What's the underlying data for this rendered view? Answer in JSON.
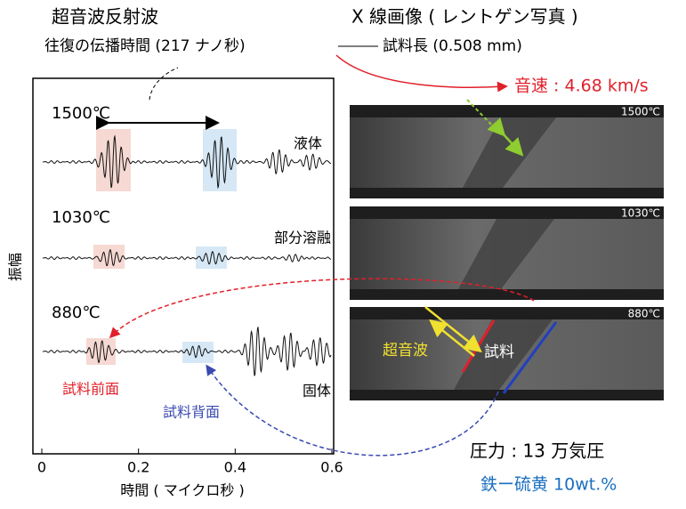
{
  "header": {
    "left_title": "超音波反射波",
    "left_subtitle": "往復の伝播時間 (217 ナノ秒)",
    "right_title": "X 線画像 ( レントゲン写真 )",
    "right_subtitle": "試料長 (0.508 mm)",
    "result": "音速 : 4.68 km/s"
  },
  "plot": {
    "y_label": "振幅",
    "x_label": "時間 ( マイクロ秒 )",
    "xlim": [
      0,
      0.6
    ],
    "xticks": [
      0,
      0.2,
      0.4,
      0.6
    ],
    "traces": [
      {
        "temperature": "1500℃",
        "state": "液体"
      },
      {
        "temperature": "1030℃",
        "state": "部分溶融"
      },
      {
        "temperature": "880℃",
        "state": "固体"
      }
    ],
    "annotations": {
      "front": "試料前面",
      "back": "試料背面"
    }
  },
  "images": [
    {
      "temperature": "1500℃"
    },
    {
      "temperature": "1030℃"
    },
    {
      "temperature": "880℃"
    }
  ],
  "image_labels": {
    "ultrasound": "超音波",
    "sample": "試料"
  },
  "footer": {
    "pressure": "圧力 : 13 万気圧",
    "composition": "鉄ー硫黄 10wt.%"
  }
}
